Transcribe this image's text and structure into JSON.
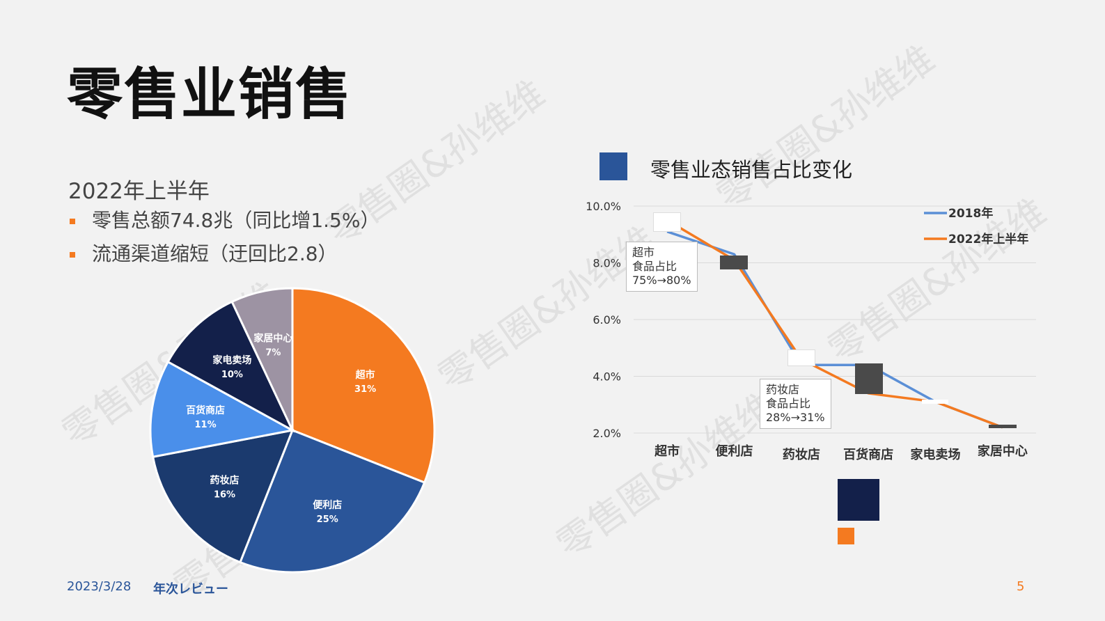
{
  "slide": {
    "title": "零售业销售",
    "subtitle": "2022年上半年",
    "bullets": [
      "零售总额74.8兆（同比增1.5%）",
      "流通渠道缩短（迂回比2.8）"
    ],
    "footer_date": "2023/3/28",
    "footer_name": "年次レビュー",
    "page_number": "5",
    "watermark_text": "零售圈&孙维维"
  },
  "colors": {
    "orange": "#f47a20",
    "blue_mid": "#2a5599",
    "navy_dark": "#13204a",
    "navy": "#1b3a6e",
    "blue_light": "#4a8fea",
    "gray_purple": "#9d93a3",
    "line_blue": "#5b8fd6",
    "line_orange": "#f47a20"
  },
  "line_chart_title": "零售业态销售占比变化",
  "annotations": [
    {
      "lines": [
        "超市",
        "食品占比",
        "75%→80%"
      ]
    },
    {
      "lines": [
        "药妆店",
        "食品占比",
        "28%→31%"
      ]
    }
  ],
  "chart_data": [
    {
      "type": "pie",
      "slices": [
        {
          "label": "超市",
          "value": 31,
          "pct": "31%",
          "color": "#f47a20"
        },
        {
          "label": "便利店",
          "value": 25,
          "pct": "25%",
          "color": "#2a5599"
        },
        {
          "label": "药妆店",
          "value": 16,
          "pct": "16%",
          "color": "#1b3a6e"
        },
        {
          "label": "百货商店",
          "value": 11,
          "pct": "11%",
          "color": "#4a8fea"
        },
        {
          "label": "家电卖场",
          "value": 10,
          "pct": "10%",
          "color": "#13204a"
        },
        {
          "label": "家居中心",
          "value": 7,
          "pct": "7%",
          "color": "#9d93a3"
        }
      ]
    },
    {
      "type": "line",
      "categories": [
        "超市",
        "便利店",
        "药妆店",
        "百货商店",
        "家电卖场",
        "家居中心"
      ],
      "series": [
        {
          "name": "2018年",
          "color": "#5b8fd6",
          "values": [
            9.1,
            8.3,
            4.4,
            4.4,
            3.1,
            2.2
          ]
        },
        {
          "name": "2022年上半年",
          "color": "#f47a20",
          "values": [
            9.5,
            8.1,
            4.6,
            3.4,
            3.1,
            2.2
          ]
        }
      ],
      "y_ticks": [
        "10.0%",
        "8.0%",
        "6.0%",
        "4.0%",
        "2.0%"
      ],
      "ylim": [
        2,
        10
      ],
      "grid": true,
      "legend": "top-right"
    }
  ]
}
